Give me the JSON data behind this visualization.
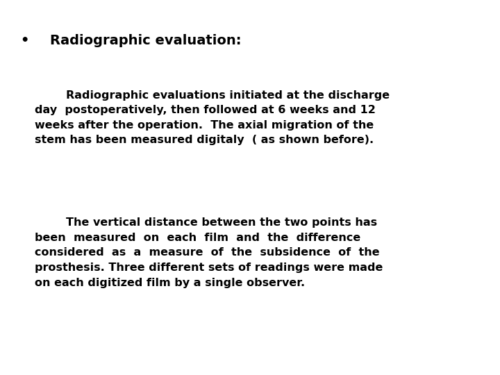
{
  "background_color": "#ffffff",
  "bullet_char": "•",
  "bullet_text": "Radiographic evaluation:",
  "paragraph1": "        Radiographic evaluations initiated at the discharge\nday  postoperatively, then followed at 6 weeks and 12\nweeks after the operation.  The axial migration of the\nstem has been measured digitaly  ( as shown before).",
  "paragraph2": "        The vertical distance between the two points has\nbeen  measured  on  each  film  and  the  difference\nconsidered  as  a  measure  of  the  subsidence  of  the\nprosthesis. Three different sets of readings were made\non each digitized film by a single observer.",
  "font_family": "DejaVu Sans",
  "bullet_fontsize": 14,
  "body_fontsize": 11.5,
  "text_color": "#000000",
  "fig_width": 7.2,
  "fig_height": 5.4,
  "fig_dpi": 100
}
